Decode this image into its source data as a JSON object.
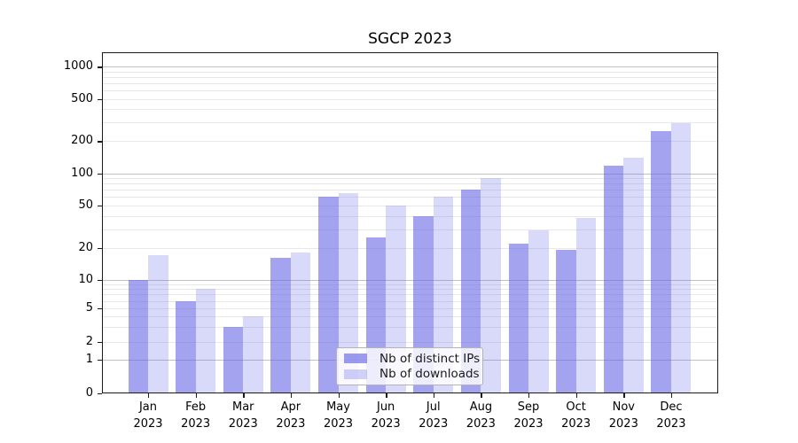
{
  "page": {
    "background": "#ffffff"
  },
  "chart_data": {
    "type": "bar",
    "title": "SGCP 2023",
    "categories": [
      "Jan 2023",
      "Feb 2023",
      "Mar 2023",
      "Apr 2023",
      "May 2023",
      "Jun 2023",
      "Jul 2023",
      "Aug 2023",
      "Sep 2023",
      "Oct 2023",
      "Nov 2023",
      "Dec 2023"
    ],
    "series": [
      {
        "name": "Nb of distinct IPs",
        "color": "#6666e6",
        "opacity": 0.6,
        "values": [
          10,
          6,
          3,
          16,
          60,
          25,
          40,
          70,
          22,
          19,
          118,
          250
        ]
      },
      {
        "name": "Nb of downloads",
        "color": "#6666e6",
        "opacity": 0.25,
        "values": [
          17,
          8,
          4,
          18,
          65,
          50,
          60,
          90,
          29,
          38,
          140,
          295
        ]
      }
    ],
    "xlabel": "",
    "ylabel": "",
    "yscale": "symlog",
    "yticks": [
      0,
      1,
      2,
      5,
      10,
      20,
      50,
      100,
      200,
      500,
      1000
    ],
    "ylim": [
      0,
      1400
    ],
    "grid": "horizontal major+minor",
    "legend_position": "lower center"
  }
}
